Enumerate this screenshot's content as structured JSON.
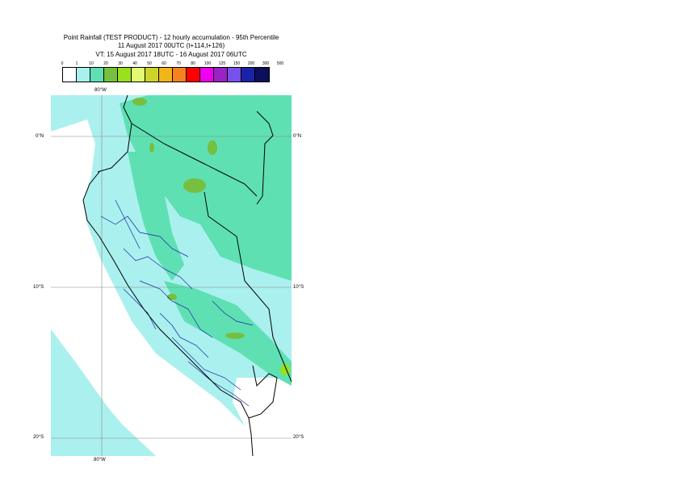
{
  "title": {
    "line1": "Point Rainfall (TEST PRODUCT) - 12 hourly accumulation - 95th Percentile",
    "line2": "11 August 2017 00UTC (t+114,t+126)",
    "line3": "VT: 15 August 2017 18UTC - 16 August 2017 06UTC"
  },
  "legend": {
    "labels": [
      "0",
      "1",
      "10",
      "20",
      "30",
      "40",
      "50",
      "60",
      "70",
      "80",
      "100",
      "125",
      "150",
      "200",
      "300",
      "500"
    ],
    "colors": [
      "#ffffff",
      "#aaf0ee",
      "#5fe0b3",
      "#77bf3f",
      "#99e01e",
      "#e3f976",
      "#ccd52a",
      "#f3b61a",
      "#f6811e",
      "#ff0000",
      "#ee00ee",
      "#9a23c3",
      "#7851ec",
      "#1b22a8",
      "#0b0f5c"
    ]
  },
  "map": {
    "colors": {
      "sea": "#aaf0ee",
      "land_low": "#aaf0ee",
      "land_mid": "#5fe0b3",
      "land_high": "#77bf3f",
      "land_peak": "#99e01e",
      "dry": "#ffffff",
      "border": "#000000",
      "admin": "#1b22a8",
      "grid": "#888888"
    },
    "axis": {
      "lon_top": "80°W",
      "lon_bottom": "80°W",
      "lat_0_left": "0°N",
      "lat_0_right": "0°N",
      "lat_10_left": "10°S",
      "lat_10_right": "10°S",
      "lat_20_left": "20°S",
      "lat_20_right": "20°S"
    }
  }
}
